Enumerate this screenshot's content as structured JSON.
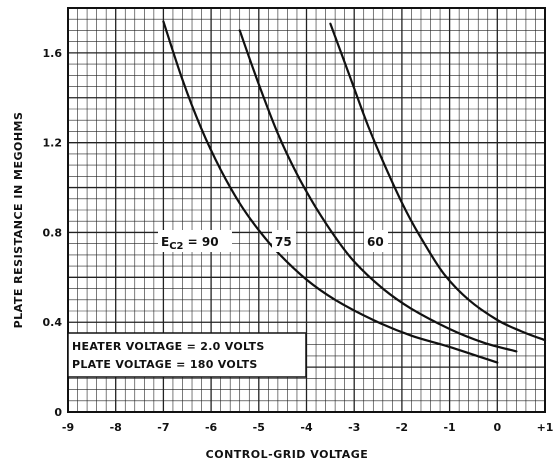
{
  "chart_data": {
    "type": "line",
    "xlabel": "CONTROL-GRID VOLTAGE",
    "ylabel": "PLATE RESISTANCE IN MEGOHMS",
    "xlim": [
      -9,
      1
    ],
    "ylim": [
      0,
      1.8
    ],
    "xticks": [
      "-9",
      "-8",
      "-7",
      "-6",
      "-5",
      "-4",
      "-3",
      "-2",
      "-1",
      "0",
      "+1"
    ],
    "yticks": [
      "0",
      "0.4",
      "0.8",
      "1.2",
      "1.6"
    ],
    "grid": true,
    "series": [
      {
        "name": "E C2 = 90",
        "x": [
          -7.0,
          -6.6,
          -6.2,
          -5.8,
          -5.4,
          -5.0,
          -4.6,
          -4.0,
          -3.4,
          -2.6,
          -1.8,
          -1.0,
          0.0
        ],
        "y": [
          1.74,
          1.48,
          1.26,
          1.08,
          0.93,
          0.81,
          0.71,
          0.59,
          0.5,
          0.41,
          0.34,
          0.29,
          0.22
        ]
      },
      {
        "name": "75",
        "x": [
          -5.4,
          -5.0,
          -4.6,
          -4.2,
          -3.8,
          -3.4,
          -3.0,
          -2.4,
          -1.8,
          -1.0,
          -0.3,
          0.4
        ],
        "y": [
          1.7,
          1.46,
          1.24,
          1.06,
          0.91,
          0.78,
          0.67,
          0.55,
          0.46,
          0.37,
          0.31,
          0.27
        ]
      },
      {
        "name": "60",
        "x": [
          -3.5,
          -3.1,
          -2.7,
          -2.3,
          -1.9,
          -1.5,
          -1.1,
          -0.6,
          0.0,
          0.5,
          1.0
        ],
        "y": [
          1.73,
          1.5,
          1.27,
          1.07,
          0.89,
          0.74,
          0.61,
          0.5,
          0.41,
          0.36,
          0.32
        ]
      }
    ],
    "curve_labels": [
      {
        "text": "E",
        "sub": "C2",
        "rest": " = 90"
      },
      {
        "text": "75"
      },
      {
        "text": "60"
      }
    ],
    "annotations": [
      "HEATER VOLTAGE = 2.0 VOLTS",
      "PLATE VOLTAGE = 180 VOLTS"
    ]
  }
}
